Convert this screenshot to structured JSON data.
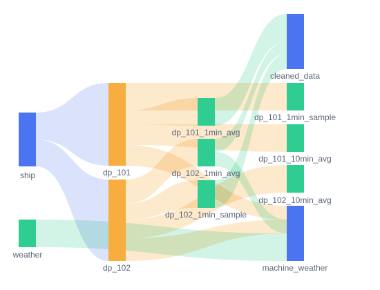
{
  "colors": {
    "blue": "#4a74f0",
    "orange": "#f8ad3f",
    "green": "#2fcd92",
    "link_blue": "#d6e0fb",
    "link_orange": "#fde8c8",
    "link_green": "#cdf3e3"
  },
  "diagram": {
    "nodes": [
      {
        "id": "ship",
        "label": "ship",
        "color": "blue"
      },
      {
        "id": "weather",
        "label": "weather",
        "color": "green"
      },
      {
        "id": "dp_101",
        "label": "dp_101",
        "color": "orange"
      },
      {
        "id": "dp_102",
        "label": "dp_102",
        "color": "orange"
      },
      {
        "id": "dp_101_1min_avg",
        "label": "dp_101_1min_avg",
        "color": "green"
      },
      {
        "id": "dp_102_1min_avg",
        "label": "dp_102_1min_avg",
        "color": "green"
      },
      {
        "id": "dp_102_1min_sample",
        "label": "dp_102_1min_sample",
        "color": "green"
      },
      {
        "id": "cleaned_data",
        "label": "cleaned_data",
        "color": "blue"
      },
      {
        "id": "dp_101_1min_sample",
        "label": "dp_101_1min_sample",
        "color": "green"
      },
      {
        "id": "dp_101_10min_avg",
        "label": "dp_101_10min_avg",
        "color": "green"
      },
      {
        "id": "dp_102_10min_avg",
        "label": "dp_102_10min_avg",
        "color": "green"
      },
      {
        "id": "machine_weather",
        "label": "machine_weather",
        "color": "blue"
      }
    ],
    "links": [
      {
        "source": "ship",
        "target": "dp_101",
        "color": "link_blue"
      },
      {
        "source": "ship",
        "target": "dp_102",
        "color": "link_blue"
      },
      {
        "source": "weather",
        "target": "machine_weather",
        "color": "link_green"
      },
      {
        "source": "dp_101",
        "target": "dp_101_1min_sample",
        "color": "link_orange"
      },
      {
        "source": "dp_101",
        "target": "dp_101_1min_avg",
        "color": "link_orange"
      },
      {
        "source": "dp_101",
        "target": "dp_101_10min_avg",
        "color": "link_orange"
      },
      {
        "source": "dp_101",
        "target": "machine_weather",
        "color": "link_orange"
      },
      {
        "source": "dp_102",
        "target": "dp_102_1min_avg",
        "color": "link_orange"
      },
      {
        "source": "dp_102",
        "target": "dp_102_1min_sample",
        "color": "link_orange"
      },
      {
        "source": "dp_102",
        "target": "dp_102_10min_avg",
        "color": "link_orange"
      },
      {
        "source": "dp_102",
        "target": "machine_weather",
        "color": "link_orange"
      },
      {
        "source": "dp_101_1min_avg",
        "target": "cleaned_data",
        "color": "link_green"
      },
      {
        "source": "dp_102_1min_avg",
        "target": "cleaned_data",
        "color": "link_green"
      },
      {
        "source": "dp_102_1min_avg",
        "target": "machine_weather",
        "color": "link_green"
      },
      {
        "source": "dp_102_1min_sample",
        "target": "cleaned_data",
        "color": "link_green"
      }
    ]
  }
}
